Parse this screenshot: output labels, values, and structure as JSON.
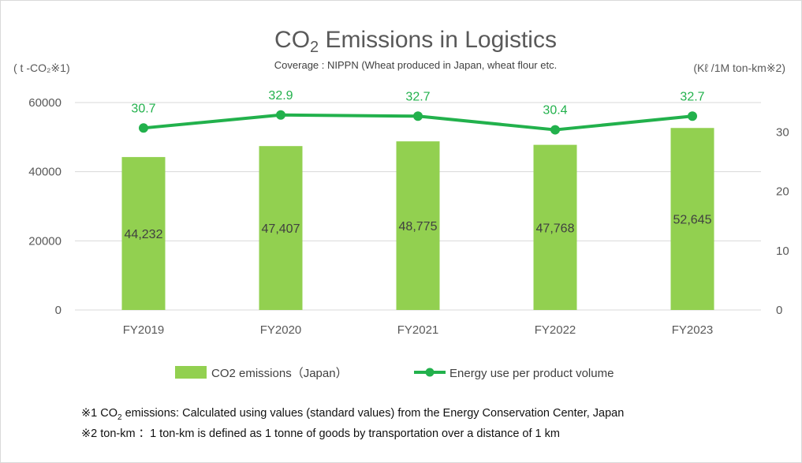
{
  "chart_data": {
    "type": "bar",
    "title_main": "CO",
    "title_sub": "2",
    "title_rest": " Emissions in Logistics",
    "subtitle": "Coverage : NIPPN (Wheat produced in Japan, wheat flour etc.",
    "ylabel_left": "( t -CO₂※1)",
    "ylabel_right": "(Kℓ /1M ton-km※2)",
    "categories": [
      "FY2019",
      "FY2020",
      "FY2021",
      "FY2022",
      "FY2023"
    ],
    "ylim": [
      0,
      60000
    ],
    "y2lim": [
      0,
      35
    ],
    "yticks": [
      "0",
      "20000",
      "40000",
      "60000"
    ],
    "y2ticks": [
      "0",
      "10",
      "20",
      "30"
    ],
    "series": [
      {
        "name": "CO2 emissions（Japan）",
        "type": "bar",
        "axis": "left",
        "color": "#92d050",
        "values": [
          44232,
          47407,
          48775,
          47768,
          52645
        ],
        "labels": [
          "44,232",
          "47,407",
          "48,775",
          "47,768",
          "52,645"
        ]
      },
      {
        "name": "Energy use per product volume",
        "type": "line",
        "axis": "right",
        "color": "#22b14c",
        "values": [
          30.7,
          32.9,
          32.7,
          30.4,
          32.7
        ],
        "labels": [
          "30.7",
          "32.9",
          "32.7",
          "30.4",
          "32.7"
        ]
      }
    ],
    "grid": true,
    "legend": "bottom"
  },
  "notes": {
    "note1_prefix": "※1 CO",
    "note1_sub": "2",
    "note1_rest": " emissions: Calculated using values (standard values) from the Energy Conservation Center, Japan",
    "note2": "※2 ton-km ：1 ton-km is defined as 1 tonne of goods by transportation over a distance of 1 km"
  }
}
